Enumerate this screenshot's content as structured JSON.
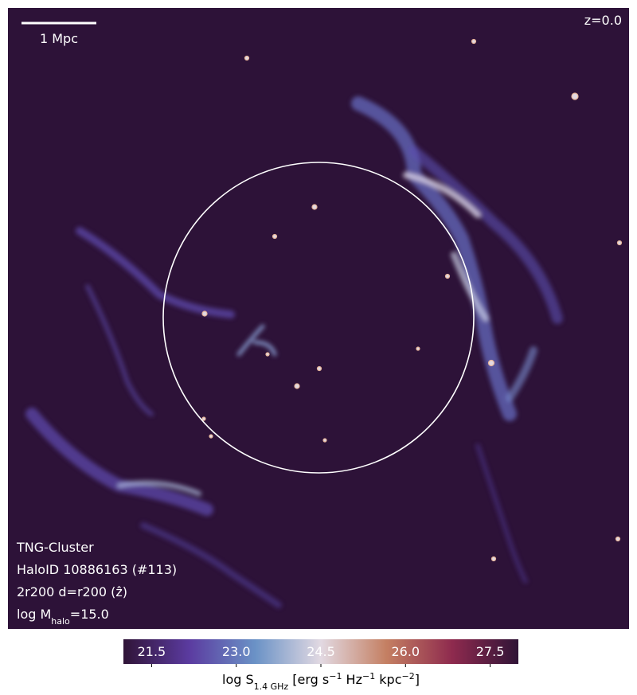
{
  "chart_data": {
    "type": "map",
    "redshift_label": "z=0.0",
    "scale_bar_label": "1 Mpc",
    "annotations": [
      {
        "parts": [
          {
            "text": "TNG-Cluster"
          }
        ]
      },
      {
        "parts": [
          {
            "text": "HaloID 10886163 (#113)"
          }
        ]
      },
      {
        "parts": [
          {
            "text": "2r200 d=r200 (ẑ)"
          }
        ]
      },
      {
        "parts": [
          {
            "text": "log M"
          },
          {
            "text": "halo",
            "shift": "sub"
          },
          {
            "text": "=15.0"
          }
        ]
      }
    ],
    "colorbar": {
      "clim": [
        21.0,
        28.0
      ],
      "ticks": [
        21.5,
        {
          "value": 23,
          "label": "23.0"
        },
        24.5,
        {
          "value": 26,
          "label": "26.0"
        },
        27.5
      ],
      "colors": [
        "#301437",
        "#5b3ba0",
        "#6a92c6",
        "#e2d9e2",
        "#c47f62",
        "#8e2a4e",
        "#301437"
      ],
      "label_parts": [
        {
          "text": "log S"
        },
        {
          "text": "1.4 GHz",
          "shift": "sub"
        },
        {
          "text": " [erg s"
        },
        {
          "text": "−1",
          "shift": "super"
        },
        {
          "text": " Hz"
        },
        {
          "text": "−1",
          "shift": "super"
        },
        {
          "text": " kpc"
        },
        {
          "text": "−2",
          "shift": "super"
        },
        {
          "text": "]"
        }
      ]
    }
  }
}
